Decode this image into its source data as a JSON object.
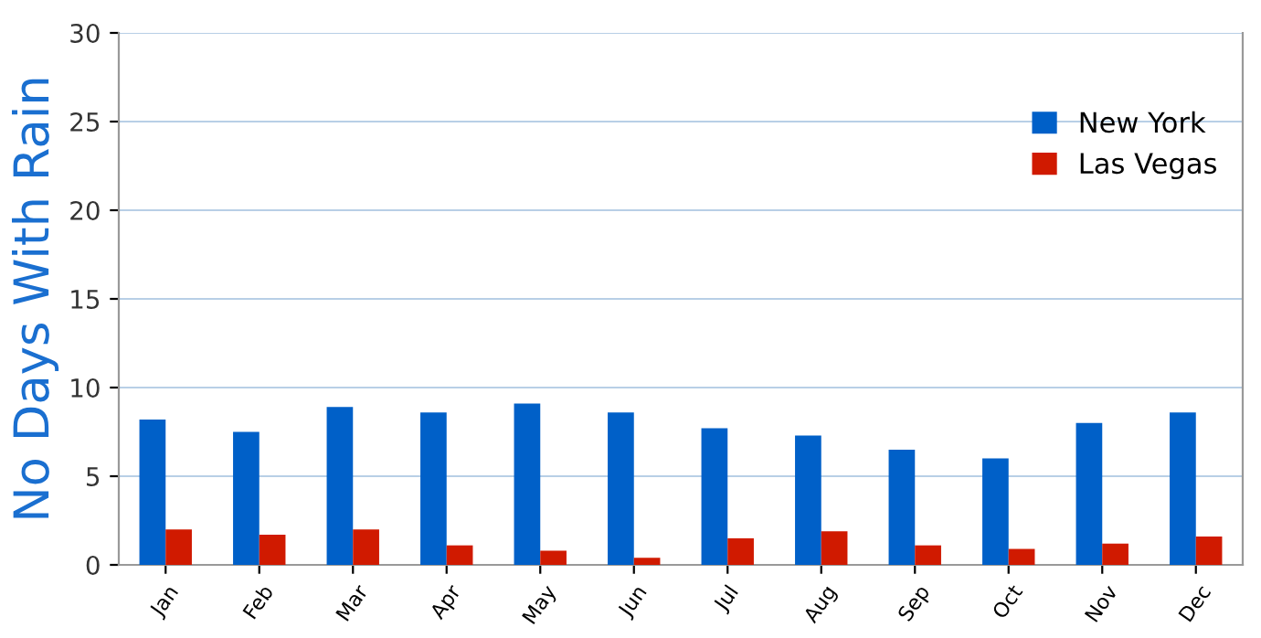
{
  "chart_data": {
    "type": "bar",
    "ylabel": "No Days With Rain",
    "categories": [
      "Jan",
      "Feb",
      "Mar",
      "Apr",
      "May",
      "Jun",
      "Jul",
      "Aug",
      "Sep",
      "Oct",
      "Nov",
      "Dec"
    ],
    "series": [
      {
        "name": "New York",
        "color": "#0060c8",
        "values": [
          8.2,
          7.5,
          8.9,
          8.6,
          9.1,
          8.6,
          7.7,
          7.3,
          6.5,
          6.0,
          8.0,
          8.6
        ]
      },
      {
        "name": "Las Vegas",
        "color": "#d01a00",
        "values": [
          2.0,
          1.7,
          2.0,
          1.1,
          0.8,
          0.4,
          1.5,
          1.9,
          1.1,
          0.9,
          1.2,
          1.6
        ]
      }
    ],
    "ylim": [
      0,
      30
    ],
    "yticks": [
      0,
      5,
      10,
      15,
      20,
      25,
      30
    ],
    "grid": "y",
    "legend": "top right"
  }
}
